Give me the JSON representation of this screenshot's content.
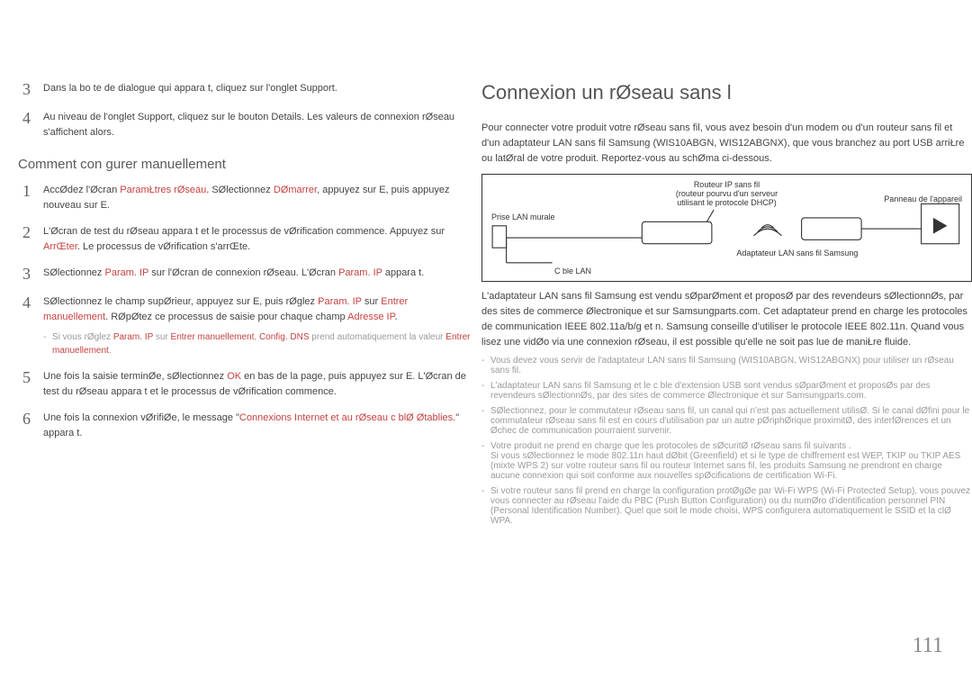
{
  "colors": {
    "text": "#444444",
    "accent": "#c64040",
    "muted": "#9a9a9a",
    "heading": "#555555",
    "border": "#333333",
    "page_bg": "#ffffff"
  },
  "left": {
    "steps_top": [
      {
        "num": "3",
        "body": "Dans la bo te de dialogue qui appara t, cliquez sur l'onglet Support."
      },
      {
        "num": "4",
        "body": "Au niveau de l'onglet Support, cliquez sur le bouton Details. Les valeurs de connexion rØseau s'affichent alors."
      }
    ],
    "subhead": "Comment con gurer manuellement",
    "steps": [
      {
        "num": "1",
        "pre": "AccØdez  l'Øcran ",
        "a1": "ParamŁtres rØseau",
        "mid1": ". SØlectionnez ",
        "a2": "DØmarrer",
        "mid2": ", appuyez sur E, puis appuyez  nouveau sur E.",
        "sub": null
      },
      {
        "num": "2",
        "pre": "L'Øcran de test du rØseau appara t et le processus de vØrification commence. Appuyez sur ",
        "a1": "ArrŒter",
        "mid1": ". Le processus de vØrification s'arrŒte.",
        "a2": null,
        "mid2": "",
        "sub": null
      },
      {
        "num": "3",
        "pre": "SØlectionnez ",
        "a1": "Param. IP",
        "mid1": " sur l'Øcran de connexion rØseau. L'Øcran ",
        "a2": "Param. IP",
        "mid2": " appara t.",
        "sub": null
      },
      {
        "num": "4",
        "pre": "SØlectionnez le champ supØrieur, appuyez sur E, puis rØglez ",
        "a1": "Param. IP",
        "mid1": " sur ",
        "a2": "Entrer manuellement",
        "mid2": ". RØpØtez ce processus de saisie pour chaque champ ",
        "a3": "Adresse IP",
        "tail": ".",
        "sub": {
          "pre": "Si vous rØglez ",
          "a1": "Param. IP",
          "mid1": " sur ",
          "a2": "Entrer manuellement",
          "mid2": ", ",
          "a3": "Config. DNS",
          "tail_muted": " prend automatiquement la valeur ",
          "a4": "Entrer manuellement",
          "tail2": "."
        }
      },
      {
        "num": "5",
        "pre": "Une fois la saisie terminØe, sØlectionnez ",
        "a1": "OK",
        "mid1": " en bas de la page, puis appuyez sur E. L'Øcran de test du rØseau appara t et le processus de vØrification commence.",
        "a2": null,
        "mid2": "",
        "sub": null
      },
      {
        "num": "6",
        "pre": "Une fois la connexion vØrifiØe, le message \"",
        "a1": "Connexions Internet et au rØseau c blØ Øtablies.",
        "mid1": "\" appara t.",
        "a2": null,
        "mid2": "",
        "sub": null
      }
    ]
  },
  "right": {
    "heading": "Connexion  un rØseau sans  l",
    "intro": [
      "Pour connecter votre produit  votre rØseau sans fil, vous avez besoin d'un modem ou d'un routeur sans fil et d'un adaptateur LAN sans fil Samsung (WIS10ABGN, WIS12ABGNX), que vous branchez au port USB arriŁre ou latØral de votre produit. Reportez-vous au schØma ci-dessous."
    ],
    "diagram": {
      "router_label": "Routeur IP sans fil\n(routeur pourvu d'un serveur\nutilisant le protocole DHCP)",
      "wall_jack": "Prise LAN murale",
      "cable": "C ble LAN",
      "adapter": "Adaptateur LAN sans fil Samsung",
      "panel": "Panneau de l'appareil"
    },
    "body1": "L'adaptateur LAN sans fil Samsung est vendu sØparØment et proposØ par des revendeurs sØlectionnØs, par des sites de commerce Ølectronique et sur Samsungparts.com. Cet adaptateur prend en charge les protocoles de communication IEEE 802.11a/b/g et n. Samsung conseille d'utiliser le protocole IEEE 802.11n. Quand vous lisez une vidØo via une connexion rØseau, il est possible qu'elle ne soit pas lue de maniŁre fluide.",
    "bullets": [
      "Vous devez vous servir de l'adaptateur LAN sans fil Samsung (WIS10ABGN, WIS12ABGNX) pour utiliser un rØseau sans fil.",
      "L'adaptateur LAN sans fil Samsung et le c ble d'extension USB sont vendus sØparØment et proposØs par des revendeurs sØlectionnØs, par des sites de commerce Ølectronique et sur Samsungparts.com.",
      "SØlectionnez, pour le commutateur rØseau sans fil, un canal qui n'est pas actuellement utilisØ. Si le canal dØfini pour le commutateur rØseau sans fil est en cours d'utilisation par un autre pØriphØrique  proximitØ, des interfØrences et un Øchec de communication pourraient survenir.",
      "Votre produit ne prend en charge que les protocoles de sØcuritØ rØseau sans fil suivants .\nSi vous sØlectionnez le mode 802.11n  haut dØbit (Greenfield) et si le type de chiffrement est WEP, TKIP ou TKIP AES (mixte WPS 2) sur votre routeur sans fil ou routeur Internet sans fil, les produits Samsung ne prendront en charge aucune connexion qui soit conforme aux nouvelles spØcifications de certification Wi-Fi.",
      "Si votre routeur sans fil prend en charge la configuration protØgØe par Wi-Fi WPS (Wi-Fi Protected Setup), vous pouvez vous connecter au rØseau  l'aide du PBC (Push Button Configuration) ou du numØro d'identification personnel PIN (Personal Identification Number). Quel que soit le mode choisi, WPS configurera automatiquement le SSID et la clØ WPA."
    ]
  },
  "page_number": "111"
}
